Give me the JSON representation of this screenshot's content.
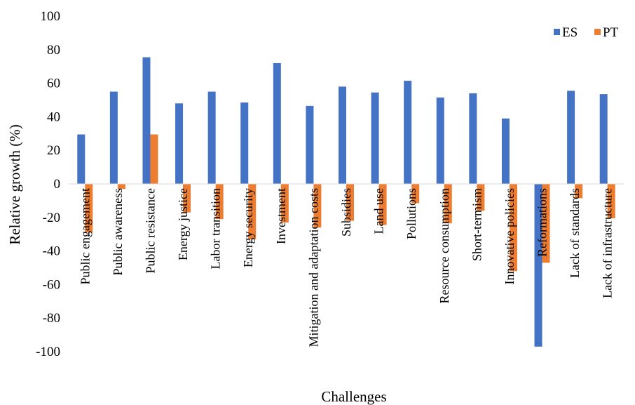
{
  "chart_data": {
    "type": "bar",
    "title": "",
    "xlabel": "Challenges",
    "ylabel": "Relative growth (%)",
    "ylim": [
      -100,
      100
    ],
    "yticks": [
      "100",
      "80",
      "60",
      "40",
      "20",
      "0",
      "-20",
      "-40",
      "-60",
      "-80",
      "-100"
    ],
    "grid": false,
    "legend_position": "top-right",
    "categories": [
      "Public engagement",
      "Public awareness",
      "Public resistance",
      "Energy justice",
      "Labor transition",
      "Energy security",
      "Investment",
      "Mitigation and adaptation costs",
      "Subsidies",
      "Land use",
      "Pollutions",
      "Resource consumption",
      "Short-termism",
      "Innovative policies",
      "Reformations",
      "Lack of standards",
      "Lack of infrastructure"
    ],
    "series": [
      {
        "name": "ES",
        "color": "#4472C4",
        "values": [
          29.5,
          55,
          75.5,
          48,
          55,
          48.5,
          72,
          46.5,
          58,
          54.5,
          61.5,
          51.5,
          54,
          39,
          -97,
          55.5,
          53.5
        ]
      },
      {
        "name": "PT",
        "color": "#ED7D31",
        "values": [
          -29,
          -3,
          29.5,
          -17,
          -21,
          -33,
          -23,
          -26,
          -22,
          -24.5,
          -11.5,
          -23.5,
          -16,
          -52,
          -47,
          -8.5,
          -20.5
        ]
      }
    ]
  }
}
